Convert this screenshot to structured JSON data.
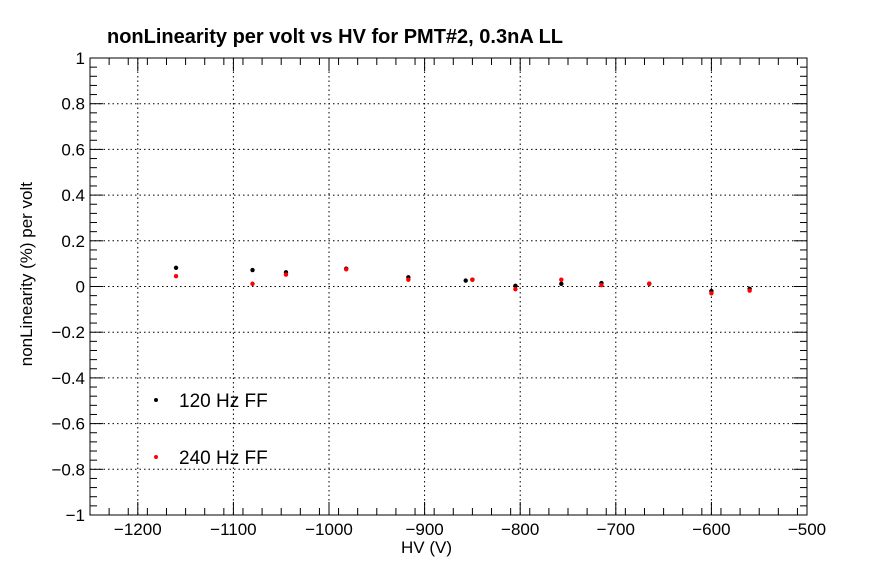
{
  "chart_data": {
    "type": "scatter",
    "title": "nonLinearity per volt vs HV for PMT#2, 0.3nA LL",
    "xlabel": "HV (V)",
    "ylabel": "nonLinearity (%) per volt",
    "xlim": [
      -1250,
      -500
    ],
    "ylim": [
      -1,
      1
    ],
    "xticks": [
      -1200,
      -1100,
      -1000,
      -900,
      -800,
      -700,
      -600,
      -500
    ],
    "xtick_labels": [
      "−1200",
      "−1100",
      "−1000",
      "−900",
      "−800",
      "−700",
      "−600",
      "−500"
    ],
    "yticks": [
      -1,
      -0.8,
      -0.6,
      -0.4,
      -0.2,
      0,
      0.2,
      0.4,
      0.6,
      0.8,
      1
    ],
    "ytick_labels": [
      "−1",
      "−0.8",
      "−0.6",
      "−0.4",
      "−0.2",
      "0",
      "0.2",
      "0.4",
      "0.6",
      "0.8",
      "1"
    ],
    "grid": true,
    "legend_position": "bottom-left",
    "series": [
      {
        "name": "120 Hz FF",
        "color": "#000000",
        "points": [
          {
            "x": -1160,
            "y": 0.082
          },
          {
            "x": -1080,
            "y": 0.072
          },
          {
            "x": -1045,
            "y": 0.062
          },
          {
            "x": -982,
            "y": 0.078
          },
          {
            "x": -917,
            "y": 0.04
          },
          {
            "x": -857,
            "y": 0.026
          },
          {
            "x": -850,
            "y": 0.03
          },
          {
            "x": -805,
            "y": 0.003
          },
          {
            "x": -757,
            "y": 0.012
          },
          {
            "x": -715,
            "y": 0.015
          },
          {
            "x": -665,
            "y": 0.012
          },
          {
            "x": -600,
            "y": -0.02
          },
          {
            "x": -560,
            "y": -0.01
          }
        ]
      },
      {
        "name": "240 Hz FF",
        "color": "#ff0000",
        "points": [
          {
            "x": -1160,
            "y": 0.045
          },
          {
            "x": -1080,
            "y": 0.012
          },
          {
            "x": -1045,
            "y": 0.052
          },
          {
            "x": -982,
            "y": 0.075
          },
          {
            "x": -917,
            "y": 0.03
          },
          {
            "x": -850,
            "y": 0.03
          },
          {
            "x": -805,
            "y": -0.012
          },
          {
            "x": -757,
            "y": 0.03
          },
          {
            "x": -715,
            "y": 0.006
          },
          {
            "x": -665,
            "y": 0.013
          },
          {
            "x": -600,
            "y": -0.03
          },
          {
            "x": -560,
            "y": -0.018
          }
        ]
      }
    ]
  }
}
